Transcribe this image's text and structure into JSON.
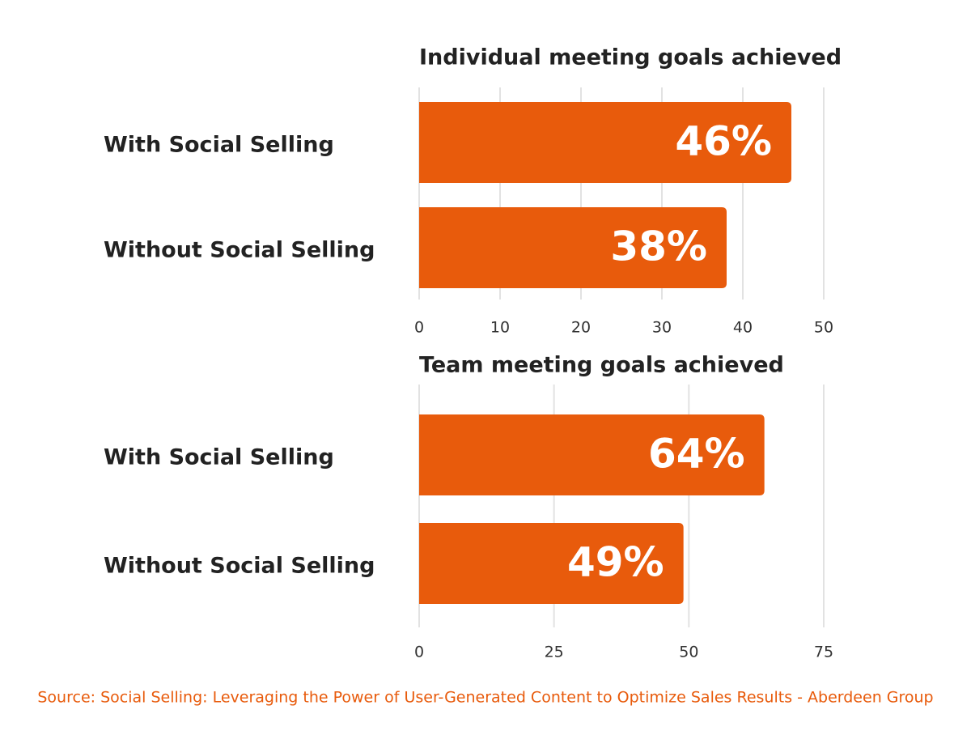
{
  "chart_data": [
    {
      "type": "barh",
      "title": "Individual meeting goals achieved",
      "categories": [
        "With Social Selling",
        "Without Social Selling"
      ],
      "values": [
        46,
        38
      ],
      "value_labels": [
        "46%",
        "38%"
      ],
      "color": "#e85b0c",
      "xlim": [
        0,
        50
      ],
      "xticks": [
        0,
        10,
        20,
        30,
        40,
        50
      ],
      "grid": true
    },
    {
      "type": "barh",
      "title": "Team meeting goals achieved",
      "categories": [
        "With Social Selling",
        "Without Social Selling"
      ],
      "values": [
        64,
        49
      ],
      "value_labels": [
        "64%",
        "49%"
      ],
      "color": "#e85b0c",
      "xlim": [
        0,
        75
      ],
      "xticks": [
        0,
        25,
        50,
        75
      ],
      "grid": true
    }
  ],
  "source": "Source: Social Selling: Leveraging the Power of User-Generated Content to Optimize Sales Results - Aberdeen Group"
}
